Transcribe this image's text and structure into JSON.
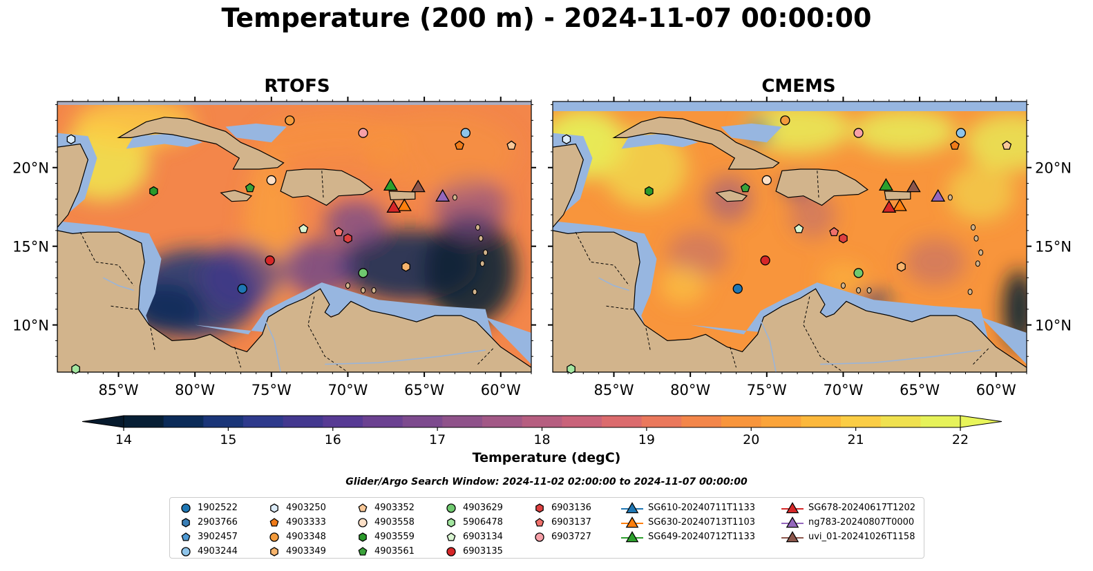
{
  "title": "Temperature (200 m) - 2024-11-07 00:00:00",
  "panels": [
    {
      "name": "RTOFS",
      "variant": "rtofs"
    },
    {
      "name": "CMEMS",
      "variant": "cmems"
    }
  ],
  "axes": {
    "lon_range": [
      -89,
      -58
    ],
    "lat_range": [
      7,
      24.2
    ],
    "lon_ticks": [
      -85,
      -80,
      -75,
      -70,
      -65,
      -60
    ],
    "lon_tick_labels": [
      "85°W",
      "80°W",
      "75°W",
      "70°W",
      "65°W",
      "60°W"
    ],
    "lat_ticks": [
      10,
      15,
      20
    ],
    "lat_tick_labels": [
      "10°N",
      "15°N",
      "20°N"
    ]
  },
  "colorbar": {
    "min": 14,
    "max": 22,
    "step": 0.5,
    "ticks": [
      "14",
      "15",
      "16",
      "17",
      "18",
      "19",
      "20",
      "21",
      "22"
    ],
    "label": "Temperature (degC)",
    "colors": [
      "#071f35",
      "#0b2b58",
      "#1a3578",
      "#2e3a8c",
      "#43388f",
      "#573a94",
      "#6b4191",
      "#7d4a8e",
      "#8f528a",
      "#a25886",
      "#b65e80",
      "#c9637a",
      "#db6b6d",
      "#ea785c",
      "#f3864a",
      "#f8953c",
      "#fba43a",
      "#fcb83c",
      "#fbcd45",
      "#f0e14f",
      "#e6f25a"
    ],
    "under_color": "#061a2d",
    "over_color": "#e8f55a"
  },
  "search_window": "Glider/Argo Search Window: 2024-11-02 02:00:00 to 2024-11-07 00:00:00",
  "colors": {
    "land": "#d2b48c",
    "shelf": "#97b6e0",
    "deep_southwest": "#061f33"
  },
  "legend": [
    {
      "label": "1902522",
      "marker": "circle",
      "color": "#1f77b4",
      "lon": -76.9,
      "lat": 12.3
    },
    {
      "label": "2903766",
      "marker": "hexagon",
      "color": "#3a7fb7",
      "lon": null,
      "lat": null
    },
    {
      "label": "3902457",
      "marker": "pentagon",
      "color": "#4f9ad4",
      "lon": null,
      "lat": null
    },
    {
      "label": "4903244",
      "marker": "circle",
      "color": "#8ec4ea",
      "lon": -62.3,
      "lat": 22.2
    },
    {
      "label": "4903250",
      "marker": "hexagon",
      "color": "#dcecf9",
      "lon": -88.1,
      "lat": 21.8
    },
    {
      "label": "4903333",
      "marker": "pentagon",
      "color": "#f07b18",
      "lon": -62.7,
      "lat": 21.4
    },
    {
      "label": "4903348",
      "marker": "circle",
      "color": "#f39b3c",
      "lon": -73.8,
      "lat": 23.0
    },
    {
      "label": "4903349",
      "marker": "hexagon",
      "color": "#f7b46c",
      "lon": -66.2,
      "lat": 13.7
    },
    {
      "label": "4903352",
      "marker": "pentagon",
      "color": "#f9c898",
      "lon": -59.3,
      "lat": 21.4
    },
    {
      "label": "4903558",
      "marker": "circle",
      "color": "#fde0c7",
      "lon": -75.0,
      "lat": 19.2
    },
    {
      "label": "4903559",
      "marker": "hexagon",
      "color": "#2a9a2a",
      "lon": -82.7,
      "lat": 18.5
    },
    {
      "label": "4903561",
      "marker": "pentagon",
      "color": "#3aa23a",
      "lon": -76.4,
      "lat": 18.7
    },
    {
      "label": "4903629",
      "marker": "circle",
      "color": "#6fc96f",
      "lon": -69.0,
      "lat": 13.3
    },
    {
      "label": "5906478",
      "marker": "hexagon",
      "color": "#a3e6a0",
      "lon": -87.8,
      "lat": 7.2
    },
    {
      "label": "6903134",
      "marker": "pentagon",
      "color": "#d9f5d2",
      "lon": -72.9,
      "lat": 16.1
    },
    {
      "label": "6903135",
      "marker": "circle",
      "color": "#d62728",
      "lon": -75.1,
      "lat": 14.1
    },
    {
      "label": "6903136",
      "marker": "hexagon",
      "color": "#de4040",
      "lon": -70.0,
      "lat": 15.5
    },
    {
      "label": "6903137",
      "marker": "pentagon",
      "color": "#f0706a",
      "lon": -70.6,
      "lat": 15.9
    },
    {
      "label": "6903727",
      "marker": "circle",
      "color": "#f7a0a8",
      "lon": -69.0,
      "lat": 22.2
    },
    {
      "label": "SG610-20240711T1133",
      "marker": "triangle-line",
      "color": "#1f77b4",
      "lon": null,
      "lat": null
    },
    {
      "label": "SG630-20240713T1103",
      "marker": "triangle-line",
      "color": "#ff7f0e",
      "lon": -66.3,
      "lat": 17.6
    },
    {
      "label": "SG649-20240712T1133",
      "marker": "triangle-line",
      "color": "#2ca02c",
      "lon": -67.2,
      "lat": 18.9
    },
    {
      "label": "SG678-20240617T1202",
      "marker": "triangle-line",
      "color": "#d62728",
      "lon": -67.0,
      "lat": 17.5
    },
    {
      "label": "ng783-20240807T0000",
      "marker": "triangle-line",
      "color": "#9467bd",
      "lon": -63.8,
      "lat": 18.2
    },
    {
      "label": "uvi_01-20241026T1158",
      "marker": "triangle-line",
      "color": "#8c564b",
      "lon": -65.4,
      "lat": 18.8
    }
  ]
}
